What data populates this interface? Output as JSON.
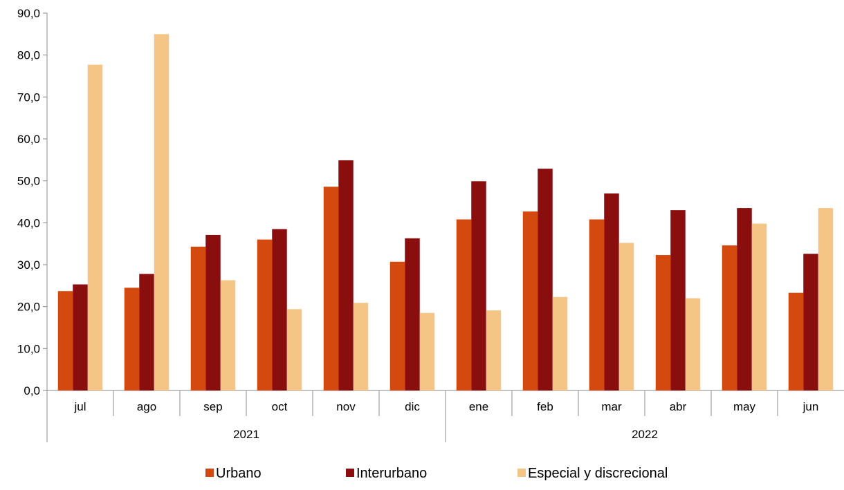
{
  "chart_data": {
    "type": "bar",
    "categories": [
      "jul",
      "ago",
      "sep",
      "oct",
      "nov",
      "dic",
      "ene",
      "feb",
      "mar",
      "abr",
      "may",
      "jun"
    ],
    "groups": [
      {
        "label": "2021",
        "categories": [
          "jul",
          "ago",
          "sep",
          "oct",
          "nov",
          "dic"
        ]
      },
      {
        "label": "2022",
        "categories": [
          "ene",
          "feb",
          "mar",
          "abr",
          "may",
          "jun"
        ]
      }
    ],
    "series": [
      {
        "name": "Urbano",
        "color": "#d4490f",
        "values": [
          23.7,
          24.5,
          34.3,
          36.0,
          48.6,
          30.7,
          40.8,
          42.7,
          40.8,
          32.3,
          34.6,
          23.3
        ]
      },
      {
        "name": "Interurbano",
        "color": "#8b0e0e",
        "values": [
          25.3,
          27.8,
          37.1,
          38.5,
          54.9,
          36.3,
          49.9,
          52.9,
          47.0,
          43.0,
          43.5,
          32.6
        ]
      },
      {
        "name": "Especial y discrecional",
        "color": "#f4c584",
        "values": [
          77.7,
          85.0,
          26.3,
          19.4,
          20.9,
          18.5,
          19.1,
          22.3,
          35.2,
          22.0,
          39.8,
          43.5
        ]
      }
    ],
    "ylim": [
      0,
      90
    ],
    "yticks": [
      "0,0",
      "10,0",
      "20,0",
      "30,0",
      "40,0",
      "50,0",
      "60,0",
      "70,0",
      "80,0",
      "90,0"
    ],
    "ytick_values": [
      0,
      10,
      20,
      30,
      40,
      50,
      60,
      70,
      80,
      90
    ],
    "grid": false,
    "legend_position": "bottom-center",
    "title": "",
    "xlabel": "",
    "ylabel": ""
  }
}
